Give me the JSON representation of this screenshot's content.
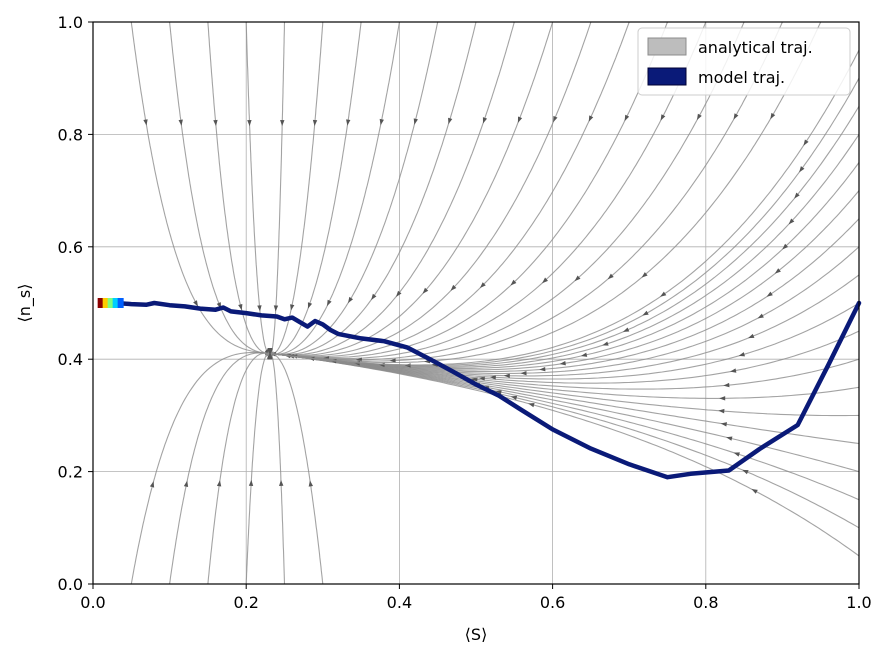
{
  "chart_data": {
    "type": "line",
    "title": "",
    "xlabel": "⟨S⟩",
    "ylabel": "⟨n_s⟩",
    "xlim": [
      0,
      1
    ],
    "ylim": [
      0,
      1
    ],
    "xticks": [
      "0.0",
      "0.2",
      "0.4",
      "0.6",
      "0.8",
      "1.0"
    ],
    "yticks": [
      "0.0",
      "0.2",
      "0.4",
      "0.6",
      "0.8",
      "1.0"
    ],
    "grid": true,
    "legend_position": "top-right",
    "colors": {
      "analytical": "#8c8c8c",
      "model": "#0a1a78",
      "legend_analytical_fill": "#bdbdbd"
    },
    "series": [
      {
        "name": "analytical traj.",
        "style": "streamlines",
        "x": [
          0.0,
          0.05,
          0.1,
          0.15,
          0.2,
          0.25,
          0.3,
          0.35,
          0.4,
          0.45,
          0.5,
          0.55,
          0.6,
          0.65,
          0.7,
          0.75,
          0.8,
          0.85,
          0.9,
          0.95,
          1.0
        ],
        "y": [
          0.0,
          0.05,
          0.1,
          0.15,
          0.2,
          0.25,
          0.3,
          0.35,
          0.4,
          0.45,
          0.5,
          0.55,
          0.6,
          0.65,
          0.7,
          0.75,
          0.8,
          0.85,
          0.9,
          0.95,
          1.0
        ]
      },
      {
        "name": "model traj.",
        "x": [
          0.01,
          0.03,
          0.05,
          0.07,
          0.08,
          0.1,
          0.12,
          0.14,
          0.16,
          0.17,
          0.18,
          0.2,
          0.22,
          0.24,
          0.25,
          0.26,
          0.27,
          0.28,
          0.29,
          0.3,
          0.31,
          0.32,
          0.35,
          0.38,
          0.41,
          0.44,
          0.47,
          0.5,
          0.53,
          0.56,
          0.6,
          0.65,
          0.7,
          0.75,
          0.78,
          0.83,
          0.87,
          0.92,
          0.96,
          1.0
        ],
        "y": [
          0.5,
          0.5,
          0.498,
          0.497,
          0.5,
          0.496,
          0.494,
          0.49,
          0.488,
          0.492,
          0.485,
          0.482,
          0.478,
          0.476,
          0.471,
          0.474,
          0.466,
          0.458,
          0.468,
          0.462,
          0.452,
          0.445,
          0.437,
          0.432,
          0.421,
          0.4,
          0.378,
          0.355,
          0.335,
          0.309,
          0.275,
          0.241,
          0.213,
          0.19,
          0.196,
          0.202,
          0.24,
          0.283,
          0.39,
          0.5
        ]
      }
    ]
  }
}
